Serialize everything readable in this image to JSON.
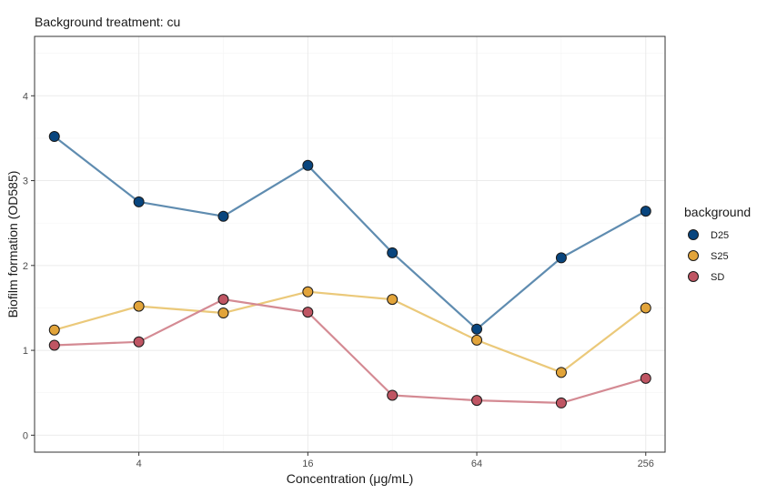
{
  "chart_data": {
    "type": "line",
    "title": "Background treatment: cu",
    "xlabel": "Concentration (μg/mL)",
    "ylabel": "Biofilm formation (OD585)",
    "x_scale": "log2",
    "x": [
      2,
      4,
      8,
      16,
      32,
      64,
      128,
      256
    ],
    "x_tick_values": [
      4,
      16,
      64,
      256
    ],
    "x_tick_labels": [
      "4",
      "16",
      "64",
      "256"
    ],
    "y_tick_values": [
      0,
      1,
      2,
      3,
      4
    ],
    "y_tick_labels": [
      "0",
      "1",
      "2",
      "3",
      "4"
    ],
    "xlim": [
      1.7,
      300
    ],
    "ylim": [
      -0.2,
      4.7
    ],
    "grid": true,
    "legend_placement": "right",
    "legend_title": "background",
    "series": [
      {
        "name": "D25",
        "color": "#08457E",
        "line_color": "#5F8CB0",
        "values": [
          3.52,
          2.75,
          2.58,
          3.18,
          2.15,
          1.25,
          2.09,
          2.64
        ]
      },
      {
        "name": "S25",
        "color": "#E2A43A",
        "line_color": "#EBC97A",
        "values": [
          1.24,
          1.52,
          1.44,
          1.69,
          1.6,
          1.12,
          0.74,
          1.5
        ]
      },
      {
        "name": "SD",
        "color": "#BF5563",
        "line_color": "#D48A93",
        "values": [
          1.06,
          1.1,
          1.6,
          1.45,
          0.47,
          0.41,
          0.38,
          0.67
        ]
      }
    ]
  }
}
